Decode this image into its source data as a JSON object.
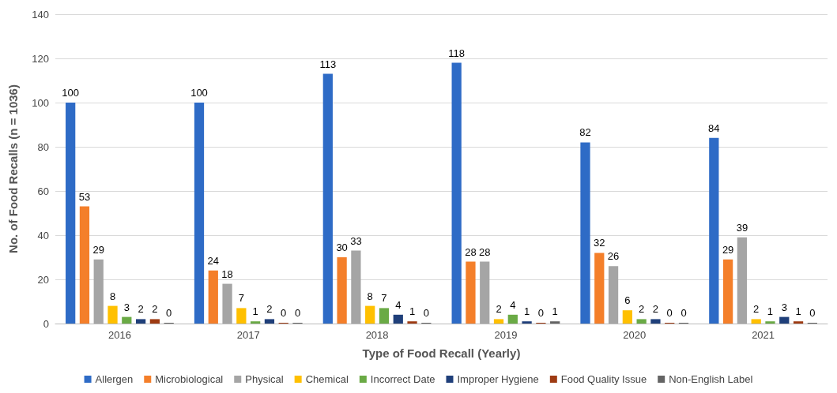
{
  "chart_data": {
    "type": "bar",
    "xlabel": "Type of Food Recall (Yearly)",
    "ylabel": "No. of Food Recalls (n = 1036)",
    "categories": [
      "2016",
      "2017",
      "2018",
      "2019",
      "2020",
      "2021"
    ],
    "series": [
      {
        "name": "Allergen",
        "color": "#2e6bc6",
        "values": [
          100,
          100,
          113,
          118,
          82,
          84
        ]
      },
      {
        "name": "Microbiological",
        "color": "#f47f2a",
        "values": [
          53,
          24,
          30,
          28,
          32,
          29
        ]
      },
      {
        "name": "Physical",
        "color": "#a5a5a5",
        "values": [
          29,
          18,
          33,
          28,
          26,
          39
        ]
      },
      {
        "name": "Chemical",
        "color": "#ffc000",
        "values": [
          8,
          7,
          8,
          2,
          6,
          2
        ]
      },
      {
        "name": "Incorrect Date",
        "color": "#6aaa45",
        "values": [
          3,
          1,
          7,
          4,
          2,
          1
        ]
      },
      {
        "name": "Improper Hygiene",
        "color": "#1f3f7a",
        "values": [
          2,
          2,
          4,
          1,
          2,
          3
        ]
      },
      {
        "name": "Food Quality Issue",
        "color": "#9e3b13",
        "values": [
          2,
          0,
          1,
          0,
          0,
          1
        ]
      },
      {
        "name": "Non-English Label",
        "color": "#646464",
        "values": [
          0,
          0,
          0,
          1,
          0,
          0
        ]
      }
    ],
    "ylim": [
      0,
      140
    ],
    "yticks": [
      0,
      20,
      40,
      60,
      80,
      100,
      120,
      140
    ],
    "grid": "y",
    "legend": "bottom",
    "data_labels": true
  }
}
